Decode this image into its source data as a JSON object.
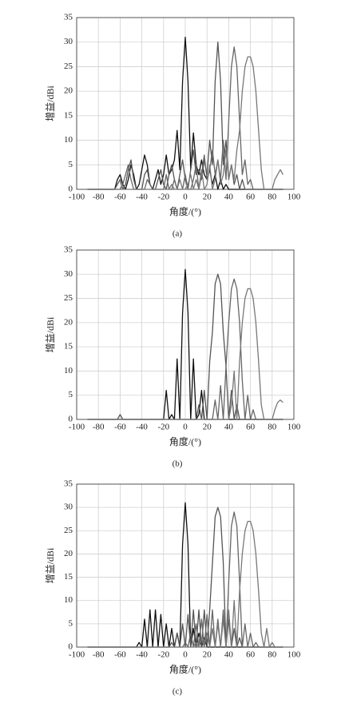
{
  "chart_data": [
    {
      "type": "line",
      "caption": "(a)",
      "xlabel": "角度/(°)",
      "ylabel": "增益/dBi",
      "grid": true,
      "xlim": [
        -100,
        100
      ],
      "xticks": [
        -100,
        -80,
        -60,
        -40,
        -20,
        0,
        20,
        40,
        60,
        80,
        100
      ],
      "ylim": [
        0,
        35
      ],
      "yticks": [
        0,
        5,
        10,
        15,
        20,
        25,
        30,
        35
      ],
      "x": [
        -90,
        -87.5,
        -85,
        -82.5,
        -80,
        -77.5,
        -75,
        -72.5,
        -70,
        -67.5,
        -65,
        -62.5,
        -60,
        -57.5,
        -55,
        -52.5,
        -50,
        -47.5,
        -45,
        -42.5,
        -40,
        -37.5,
        -35,
        -32.5,
        -30,
        -27.5,
        -25,
        -22.5,
        -20,
        -17.5,
        -15,
        -12.5,
        -10,
        -7.5,
        -5,
        -2.5,
        0,
        2.5,
        5,
        7.5,
        10,
        12.5,
        15,
        17.5,
        20,
        22.5,
        25,
        27.5,
        30,
        32.5,
        35,
        37.5,
        40,
        42.5,
        45,
        47.5,
        50,
        52.5,
        55,
        57.5,
        60,
        62.5,
        65,
        67.5,
        70,
        72.5,
        75,
        77.5,
        80,
        82.5,
        85,
        87.5,
        90
      ],
      "series": [
        {
          "color": "#111111",
          "values": [
            0,
            0,
            0,
            0,
            0,
            0,
            0,
            0,
            0,
            0,
            0,
            2,
            3,
            1,
            0,
            2,
            5,
            3,
            0,
            1,
            4,
            7,
            5,
            1,
            0,
            2,
            4,
            1,
            3,
            7,
            3,
            4,
            6,
            12,
            4,
            22,
            31,
            22,
            4,
            11.5,
            5,
            3,
            6,
            3,
            2,
            4,
            1,
            3,
            0,
            2,
            0,
            1,
            0,
            0,
            0,
            0,
            0,
            0,
            0,
            0,
            0,
            0,
            0,
            0,
            0,
            0,
            0,
            0,
            0,
            0,
            0,
            0,
            0
          ]
        },
        {
          "color": "#555555",
          "values": [
            0,
            0,
            0,
            0,
            0,
            0,
            0,
            0,
            0,
            0,
            0,
            1,
            2,
            0,
            1,
            4,
            6,
            2,
            0,
            0,
            0,
            3,
            4,
            1,
            0,
            0,
            2,
            4,
            1,
            0,
            3,
            5,
            2,
            0,
            3,
            6,
            2,
            0,
            4,
            8,
            3,
            4,
            2,
            6,
            3,
            10,
            5,
            22,
            30,
            22,
            5,
            10,
            2,
            5,
            1,
            3,
            0,
            2,
            0,
            0,
            0,
            0,
            0,
            0,
            0,
            0,
            0,
            0,
            0,
            0,
            0,
            0,
            0
          ]
        },
        {
          "color": "#666666",
          "values": [
            0,
            0,
            0,
            0,
            0,
            0,
            0,
            0,
            0,
            0,
            0,
            0,
            0,
            1,
            3,
            5,
            2,
            0,
            0,
            0,
            0,
            0,
            2,
            1,
            0,
            0,
            0,
            0,
            0,
            3,
            0,
            0,
            2,
            0,
            0,
            0,
            3,
            0,
            0,
            2,
            5,
            0,
            3,
            7,
            2,
            4,
            8,
            3,
            6,
            2,
            10,
            2,
            14,
            25,
            29,
            25,
            14,
            3,
            6,
            1,
            2,
            0,
            0,
            0,
            0,
            0,
            0,
            0,
            0,
            0,
            0,
            0,
            0
          ]
        },
        {
          "color": "#777777",
          "values": [
            0,
            0,
            0,
            0,
            0,
            0,
            0,
            0,
            0,
            0,
            0,
            0,
            0,
            0,
            0,
            0,
            0,
            0,
            0,
            0,
            0,
            0,
            0,
            0,
            0,
            0,
            0,
            0,
            0,
            0,
            0,
            1,
            0,
            0,
            2,
            0,
            0,
            1,
            3,
            0,
            2,
            0,
            4,
            0,
            1,
            5,
            0,
            2,
            6,
            1,
            3,
            8,
            2,
            5,
            2,
            8,
            12,
            20,
            25,
            27,
            27,
            25,
            20,
            12,
            4,
            0,
            0,
            0,
            0,
            2,
            3,
            4,
            3
          ]
        }
      ]
    },
    {
      "type": "line",
      "caption": "(b)",
      "xlabel": "角度/(°)",
      "ylabel": "增益/dBi",
      "grid": true,
      "xlim": [
        -100,
        100
      ],
      "xticks": [
        -100,
        -80,
        -60,
        -40,
        -20,
        0,
        20,
        40,
        60,
        80,
        100
      ],
      "ylim": [
        0,
        35
      ],
      "yticks": [
        0,
        5,
        10,
        15,
        20,
        25,
        30,
        35
      ],
      "x": [
        -90,
        -87.5,
        -85,
        -82.5,
        -80,
        -77.5,
        -75,
        -72.5,
        -70,
        -67.5,
        -65,
        -62.5,
        -60,
        -57.5,
        -55,
        -52.5,
        -50,
        -47.5,
        -45,
        -42.5,
        -40,
        -37.5,
        -35,
        -32.5,
        -30,
        -27.5,
        -25,
        -22.5,
        -20,
        -17.5,
        -15,
        -12.5,
        -10,
        -7.5,
        -5,
        -2.5,
        0,
        2.5,
        5,
        7.5,
        10,
        12.5,
        15,
        17.5,
        20,
        22.5,
        25,
        27.5,
        30,
        32.5,
        35,
        37.5,
        40,
        42.5,
        45,
        47.5,
        50,
        52.5,
        55,
        57.5,
        60,
        62.5,
        65,
        67.5,
        70,
        72.5,
        75,
        77.5,
        80,
        82.5,
        85,
        87.5,
        90
      ],
      "series": [
        {
          "color": "#111111",
          "values": [
            0,
            0,
            0,
            0,
            0,
            0,
            0,
            0,
            0,
            0,
            0,
            0,
            0,
            0,
            0,
            0,
            0,
            0,
            0,
            0,
            0,
            0,
            0,
            0,
            0,
            0,
            0,
            0,
            0,
            6,
            0,
            1,
            0,
            12.5,
            0,
            22,
            31,
            22,
            0,
            12.5,
            0,
            1,
            6,
            0,
            0,
            0,
            0,
            0,
            0,
            0,
            0,
            0,
            0,
            0,
            0,
            0,
            0,
            0,
            0,
            0,
            0,
            0,
            0,
            0,
            0,
            0,
            0,
            0,
            0,
            0,
            0,
            0,
            0
          ]
        },
        {
          "color": "#555555",
          "values": [
            0,
            0,
            0,
            0,
            0,
            0,
            0,
            0,
            0,
            0,
            0,
            0,
            1,
            0,
            0,
            0,
            0,
            0,
            0,
            0,
            0,
            0,
            0,
            0,
            0,
            0,
            0,
            0,
            0,
            0,
            0,
            0,
            0,
            0,
            0,
            0,
            0,
            0,
            0,
            0,
            0,
            3,
            0,
            6,
            0,
            12,
            18,
            28,
            30,
            28,
            18,
            11,
            0,
            6,
            0,
            3,
            0,
            0,
            0,
            0,
            0,
            0,
            0,
            0,
            0,
            0,
            0,
            0,
            0,
            0,
            0,
            0,
            0
          ]
        },
        {
          "color": "#666666",
          "values": [
            0,
            0,
            0,
            0,
            0,
            0,
            0,
            0,
            0,
            0,
            0,
            0,
            0,
            0,
            0,
            0,
            0,
            0,
            0,
            0,
            0,
            0,
            0,
            0,
            0,
            0,
            0,
            0,
            0,
            0,
            0,
            0,
            0,
            0,
            0,
            0,
            0,
            0,
            0,
            0,
            0,
            0,
            0,
            0,
            0,
            0,
            0,
            4,
            0,
            7,
            0,
            11,
            20,
            27,
            29,
            27,
            20,
            8,
            0,
            5,
            0,
            2,
            0,
            0,
            0,
            0,
            0,
            0,
            0,
            0,
            0,
            0,
            0
          ]
        },
        {
          "color": "#777777",
          "values": [
            0,
            0,
            0,
            0,
            0,
            0,
            0,
            0,
            0,
            0,
            0,
            0,
            0,
            0,
            0,
            0,
            0,
            0,
            0,
            0,
            0,
            0,
            0,
            0,
            0,
            0,
            0,
            0,
            0,
            0,
            0,
            0,
            0,
            0,
            0,
            0,
            0,
            0,
            0,
            0,
            0,
            0,
            0,
            0,
            0,
            0,
            0,
            0,
            0,
            0,
            0,
            0,
            0,
            3,
            10,
            0,
            12,
            20,
            25,
            27,
            27,
            25,
            20,
            12,
            3,
            0,
            0,
            0,
            0,
            2,
            3.5,
            4,
            3.5
          ]
        }
      ]
    },
    {
      "type": "line",
      "caption": "(c)",
      "xlabel": "角度/(°)",
      "ylabel": "增益/dBi",
      "grid": true,
      "xlim": [
        -100,
        100
      ],
      "xticks": [
        -100,
        -80,
        -60,
        -40,
        -20,
        0,
        20,
        40,
        60,
        80,
        100
      ],
      "ylim": [
        0,
        35
      ],
      "yticks": [
        0,
        5,
        10,
        15,
        20,
        25,
        30,
        35
      ],
      "x": [
        -90,
        -87.5,
        -85,
        -82.5,
        -80,
        -77.5,
        -75,
        -72.5,
        -70,
        -67.5,
        -65,
        -62.5,
        -60,
        -57.5,
        -55,
        -52.5,
        -50,
        -47.5,
        -45,
        -42.5,
        -40,
        -37.5,
        -35,
        -32.5,
        -30,
        -27.5,
        -25,
        -22.5,
        -20,
        -17.5,
        -15,
        -12.5,
        -10,
        -7.5,
        -5,
        -2.5,
        0,
        2.5,
        5,
        7.5,
        10,
        12.5,
        15,
        17.5,
        20,
        22.5,
        25,
        27.5,
        30,
        32.5,
        35,
        37.5,
        40,
        42.5,
        45,
        47.5,
        50,
        52.5,
        55,
        57.5,
        60,
        62.5,
        65,
        67.5,
        70,
        72.5,
        75,
        77.5,
        80,
        82.5,
        85,
        87.5,
        90
      ],
      "series": [
        {
          "color": "#111111",
          "values": [
            0,
            0,
            0,
            0,
            0,
            0,
            0,
            0,
            0,
            0,
            0,
            0,
            0,
            0,
            0,
            0,
            0,
            0,
            0,
            1,
            0,
            6,
            0,
            8,
            0,
            8,
            0,
            7,
            0,
            5,
            0,
            4,
            0,
            3,
            0,
            22,
            31,
            22,
            0,
            4,
            0,
            3,
            0,
            2,
            0,
            0,
            0,
            0,
            0,
            0,
            0,
            0,
            0,
            0,
            0,
            0,
            0,
            0,
            0,
            0,
            0,
            0,
            0,
            0,
            0,
            0,
            0,
            0,
            0,
            0,
            0,
            0,
            0
          ]
        },
        {
          "color": "#555555",
          "values": [
            0,
            0,
            0,
            0,
            0,
            0,
            0,
            0,
            0,
            0,
            0,
            0,
            0,
            0,
            0,
            0,
            0,
            0,
            0,
            0,
            0,
            0,
            0,
            0,
            0,
            0,
            0,
            0,
            0,
            0,
            0,
            1,
            0,
            3,
            0,
            5,
            0,
            7,
            0,
            8,
            0,
            8,
            0,
            8,
            0,
            8,
            18,
            28,
            30,
            28,
            18,
            0,
            6,
            0,
            4,
            0,
            2,
            0,
            0,
            0,
            0,
            0,
            0,
            0,
            0,
            0,
            0,
            0,
            0,
            0,
            0,
            0,
            0
          ]
        },
        {
          "color": "#666666",
          "values": [
            0,
            0,
            0,
            0,
            0,
            0,
            0,
            0,
            0,
            0,
            0,
            0,
            0,
            0,
            0,
            0,
            0,
            0,
            0,
            0,
            0,
            0,
            0,
            0,
            0,
            0,
            0,
            0,
            0,
            0,
            0,
            0,
            0,
            0,
            0,
            0,
            1,
            0,
            3,
            0,
            5,
            0,
            6,
            0,
            7,
            0,
            8,
            0,
            6,
            0,
            8,
            0,
            14,
            26,
            29,
            26,
            14,
            0,
            5,
            0,
            3,
            0,
            1,
            0,
            0,
            0,
            0,
            0,
            0,
            0,
            0,
            0,
            0
          ]
        },
        {
          "color": "#777777",
          "values": [
            0,
            0,
            0,
            0,
            0,
            0,
            0,
            0,
            0,
            0,
            0,
            0,
            0,
            0,
            0,
            0,
            0,
            0,
            0,
            0,
            0,
            0,
            0,
            0,
            0,
            0,
            0,
            0,
            0,
            0,
            0,
            0,
            0,
            0,
            0,
            0,
            0,
            0,
            0,
            0,
            1,
            0,
            2,
            0,
            3,
            0,
            4,
            0,
            5,
            0,
            6,
            0,
            8,
            0,
            10,
            0,
            12,
            20,
            25,
            27,
            27,
            25,
            20,
            12,
            3,
            0,
            4,
            0,
            1,
            0,
            0,
            0,
            0
          ]
        }
      ]
    }
  ]
}
